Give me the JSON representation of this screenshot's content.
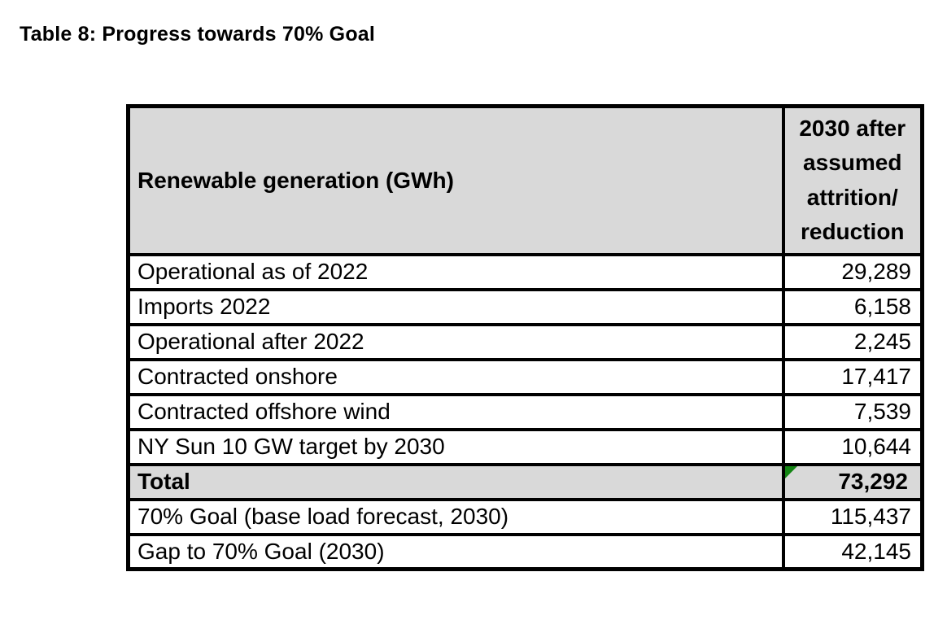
{
  "page": {
    "title": "Table 8: Progress towards 70% Goal"
  },
  "table": {
    "header": {
      "label": "Renewable generation (GWh)",
      "value": "2030 after\nassumed\nattrition/\nreduction"
    },
    "rows": [
      {
        "label": "Operational as of 2022",
        "value": "29,289"
      },
      {
        "label": "Imports 2022",
        "value": "6,158"
      },
      {
        "label": "Operational after 2022",
        "value": "2,245"
      },
      {
        "label": "Contracted onshore",
        "value": "17,417"
      },
      {
        "label": "Contracted offshore wind",
        "value": "7,539"
      },
      {
        "label": "NY Sun 10 GW target by 2030",
        "value": "10,644"
      },
      {
        "label": "Total",
        "value": "73,292"
      },
      {
        "label": "70% Goal (base load forecast, 2030)",
        "value": "115,437"
      },
      {
        "label": "Gap to 70% Goal (2030)",
        "value": "42,145"
      }
    ]
  },
  "colors": {
    "header_bg": "#d9d9d9",
    "total_row_bg": "#d9d9d9",
    "border": "#000000",
    "flag_green": "#148514",
    "text": "#000000",
    "page_bg": "#ffffff"
  },
  "chart_data": {
    "type": "table",
    "title": "Table 8: Progress towards 70% Goal",
    "columns": [
      "Renewable generation (GWh)",
      "2030 after assumed attrition/reduction"
    ],
    "categories": [
      "Operational as of 2022",
      "Imports 2022",
      "Operational after 2022",
      "Contracted onshore",
      "Contracted offshore wind",
      "NY Sun 10 GW target by 2030",
      "Total",
      "70% Goal (base load forecast, 2030)",
      "Gap to 70% Goal (2030)"
    ],
    "values": [
      29289,
      6158,
      2245,
      17417,
      7539,
      10644,
      73292,
      115437,
      42145
    ]
  }
}
